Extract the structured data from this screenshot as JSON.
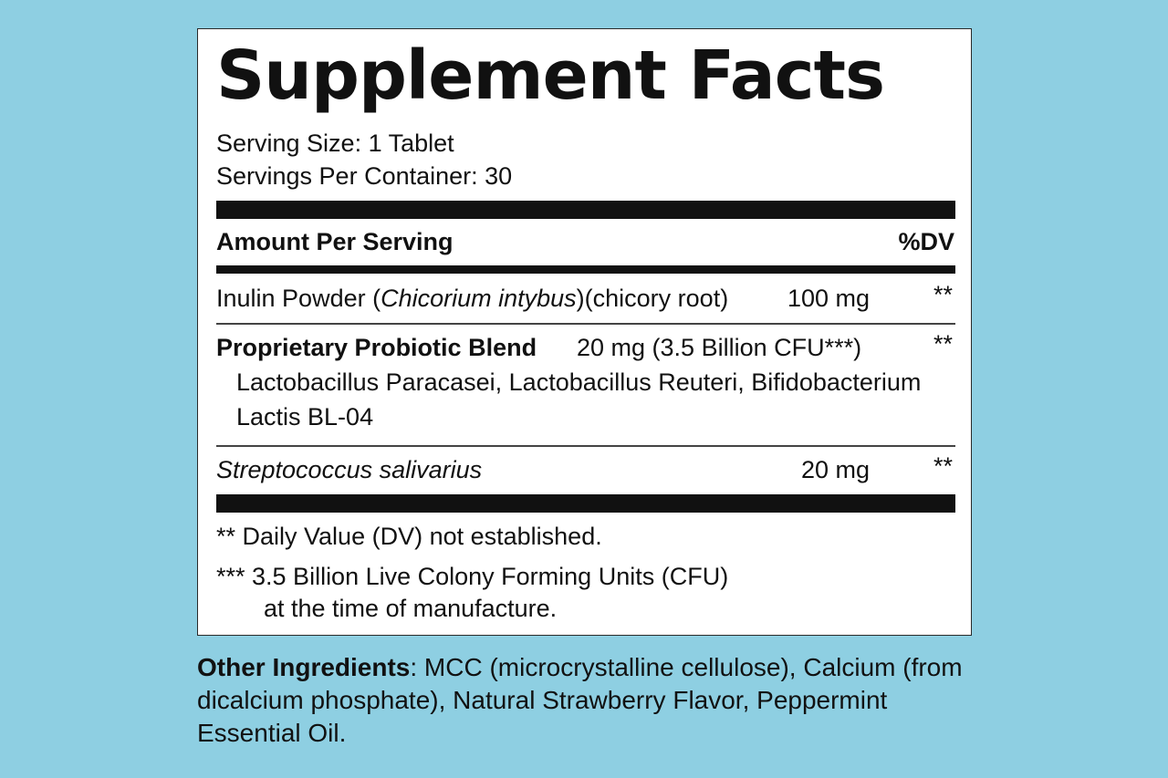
{
  "label": {
    "title": "Supplement Facts",
    "serving_size": "Serving Size: 1 Tablet",
    "servings_per_container": "Servings Per Container: 30",
    "amount_header": "Amount Per Serving",
    "dv_header": "%DV",
    "ingredients": [
      {
        "name_prefix": "Inulin Powder (",
        "name_italic": "Chicorium intybus",
        "name_suffix": ")(chicory root)",
        "amount": "100 mg",
        "dv": "**"
      },
      {
        "name": "Proprietary Probiotic Blend",
        "amount": "20 mg (3.5 Billion CFU***)",
        "dv": "**",
        "sub_line_1": "Lactobacillus Paracasei, Lactobacillus Reuteri, Bifidobacterium",
        "sub_line_2": "Lactis BL-04"
      },
      {
        "name": "Streptococcus salivarius",
        "amount": "20 mg",
        "dv": "**"
      }
    ],
    "footnote_1": "** Daily Value (DV) not established.",
    "footnote_2_line_1": "*** 3.5 Billion Live Colony Forming Units (CFU)",
    "footnote_2_line_2": "at the time of manufacture."
  },
  "other_ingredients": {
    "label": "Other Ingredients",
    "separator": ":",
    "text": " MCC (microcrystalline cellulose), Calcium (from dicalcium phosphate), Natural Strawberry Flavor, Peppermint Essential Oil."
  }
}
